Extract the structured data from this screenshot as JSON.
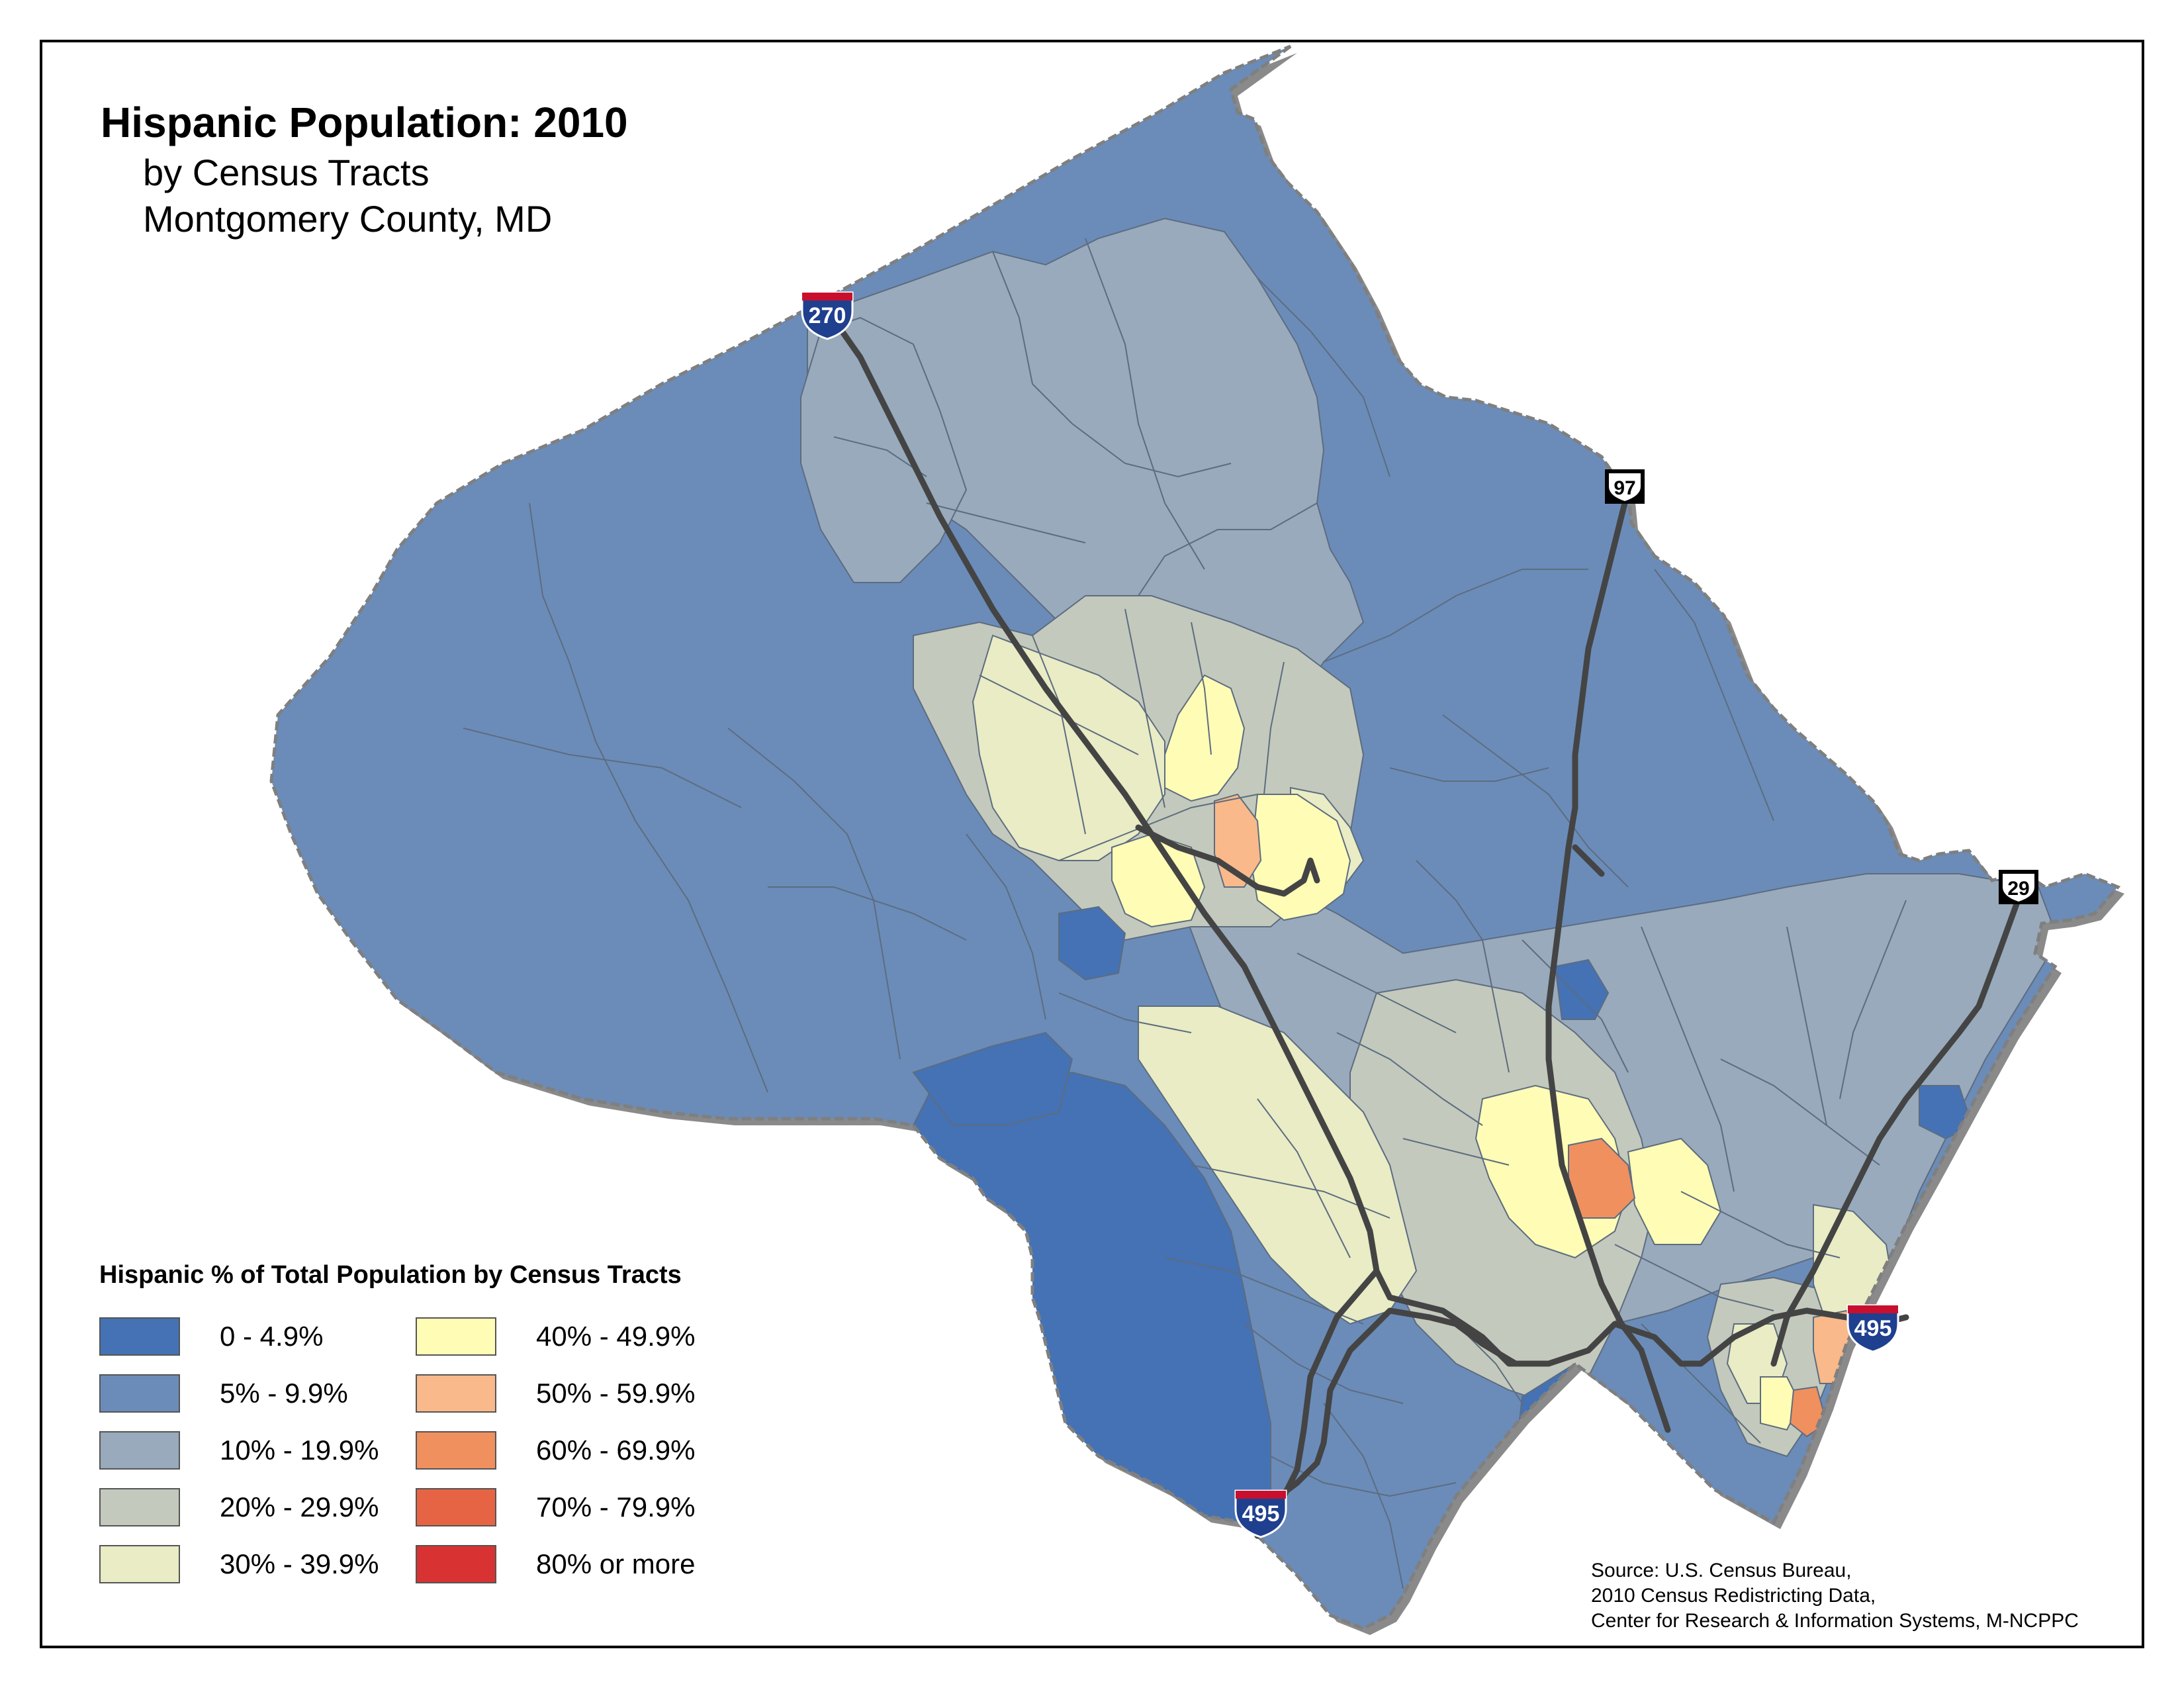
{
  "title": "Hispanic Population: 2010",
  "subtitle_line1": "by Census Tracts",
  "subtitle_line2": "Montgomery County, MD",
  "legend": {
    "title": "Hispanic % of Total Population by Census Tracts",
    "items": [
      {
        "label": "0 - 4.9%",
        "color": "#4472b4"
      },
      {
        "label": "5% - 9.9%",
        "color": "#6b8cb8"
      },
      {
        "label": "10% - 19.9%",
        "color": "#98aabb"
      },
      {
        "label": "20% - 29.9%",
        "color": "#c3c9bc"
      },
      {
        "label": "30% - 39.9%",
        "color": "#e9ecc4"
      },
      {
        "label": "40% - 49.9%",
        "color": "#fefcb5"
      },
      {
        "label": "50% - 59.9%",
        "color": "#f9b98a"
      },
      {
        "label": "60% - 69.9%",
        "color": "#f0905f"
      },
      {
        "label": "70% - 79.9%",
        "color": "#e66444"
      },
      {
        "label": "80% or more",
        "color": "#d93232"
      }
    ]
  },
  "highways": {
    "i270": "270",
    "i495_south": "495",
    "i495_east": "495",
    "us97": "97",
    "us29": "29"
  },
  "source": {
    "line1": "Source: U.S. Census Bureau,",
    "line2": "2010 Census Redistricting Data,",
    "line3": "Center for Research & Information Systems, M-NCPPC"
  },
  "colors": {
    "road": "#444444",
    "tract_border": "#5d6c80",
    "county_border": "#7f7f7f",
    "interstate_blue": "#1f3f8f",
    "interstate_red": "#c8102e"
  }
}
